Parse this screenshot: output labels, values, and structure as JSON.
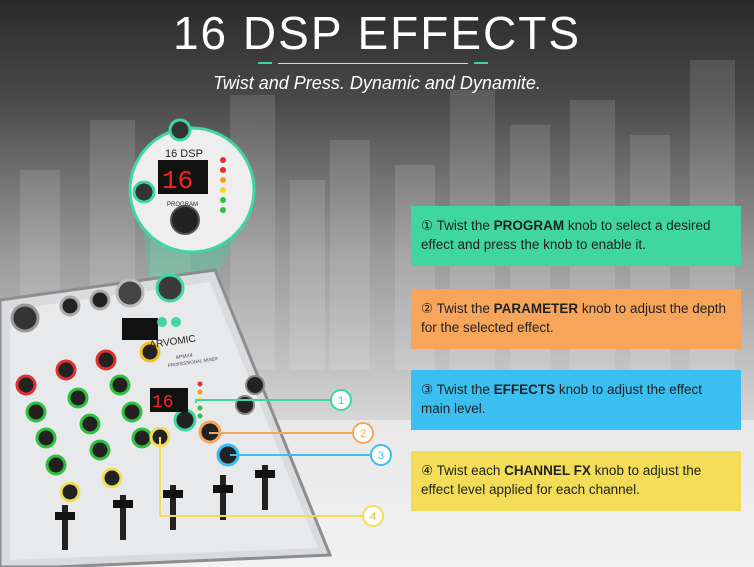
{
  "header": {
    "title": "16 DSP EFFECTS",
    "subtitle": "Twist and Press. Dynamic and Dynamite."
  },
  "device": {
    "brand": "ARVOMIC",
    "model": "APMX4",
    "model_sub": "PROFESSIONAL MIXER",
    "dsp_label": "16 DSP",
    "display_value": "16",
    "program_label": "PROGRAM"
  },
  "markers": [
    "1",
    "2",
    "3",
    "4"
  ],
  "cards": [
    {
      "num": "①",
      "pre": " Twist the ",
      "key": "PROGRAM",
      "post": " knob to select a desired effect and press the knob to enable it.",
      "color": "#3fd6a0"
    },
    {
      "num": "②",
      "pre": " Twist the ",
      "key": "PARAMETER",
      "post": " knob to adjust the depth for the selected effect.",
      "color": "#f6a55a"
    },
    {
      "num": "③",
      "pre": " Twist the ",
      "key": "EFFECTS",
      "post": " knob to adjust the effect main level.",
      "color": "#3bbef0"
    },
    {
      "num": "④",
      "pre": " Twist each ",
      "key": "CHANNEL FX",
      "post": " knob to adjust the effect level applied for each channel.",
      "color": "#f3dd58"
    }
  ]
}
